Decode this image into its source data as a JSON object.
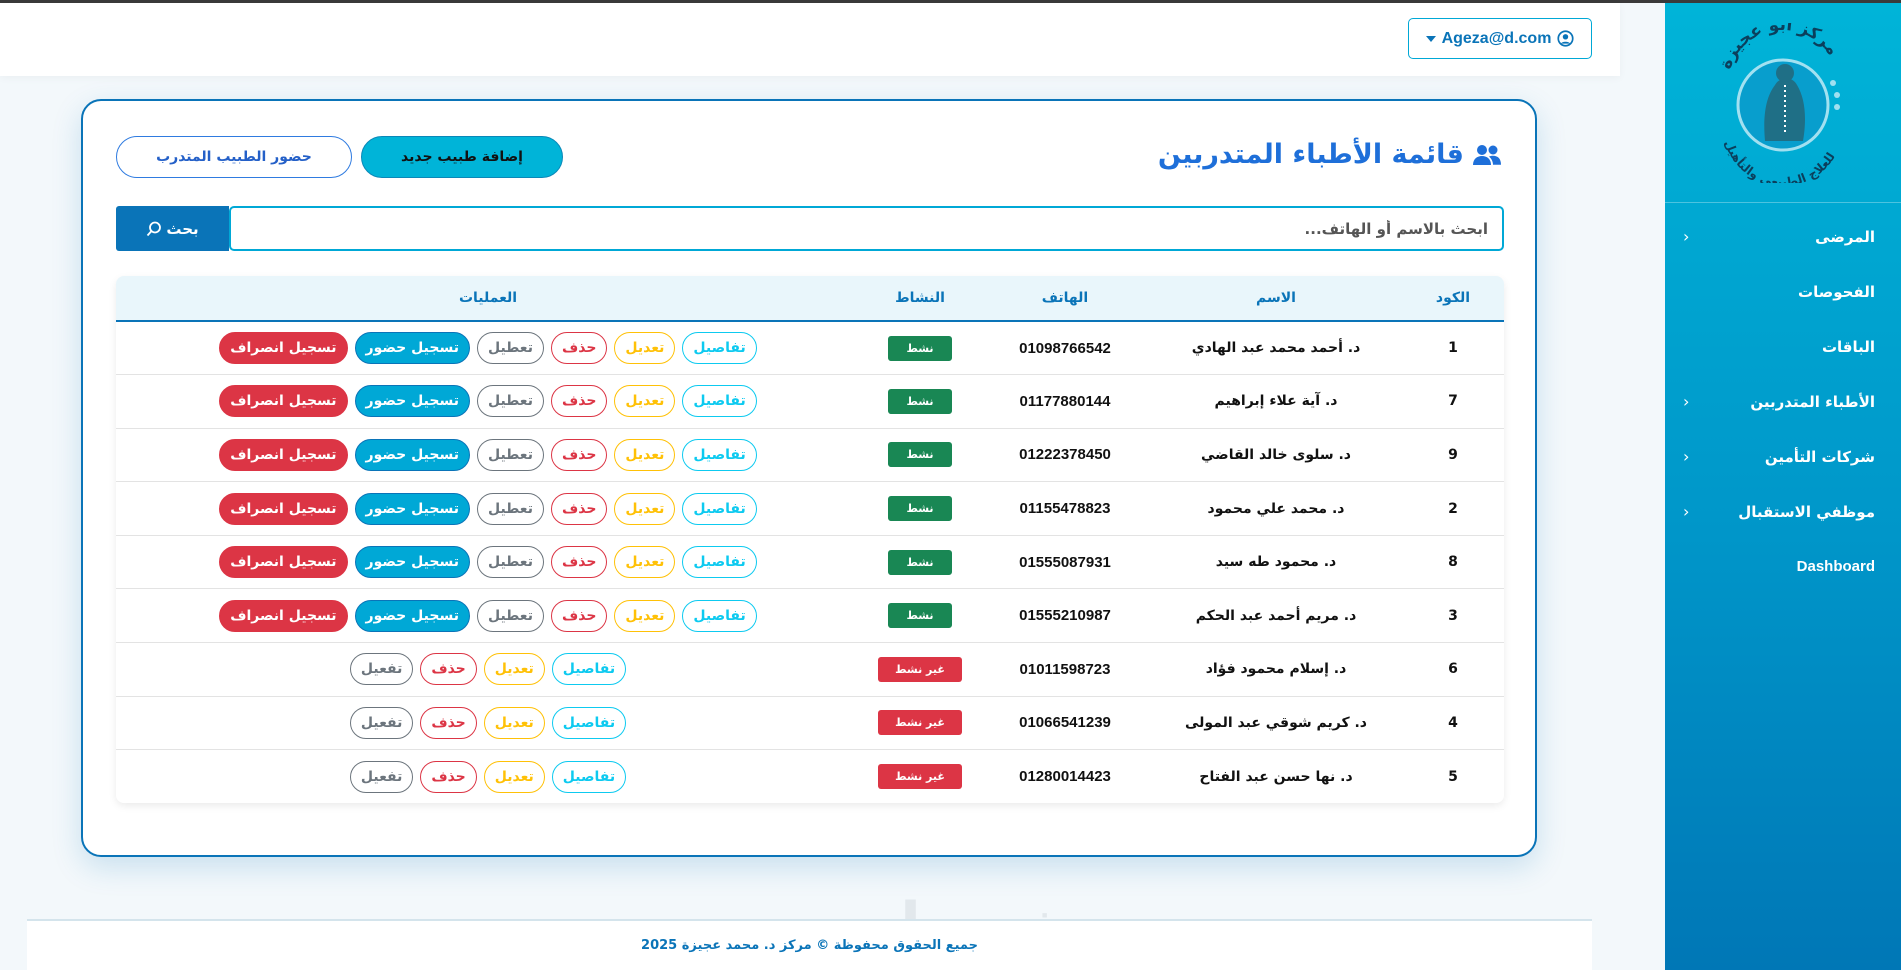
{
  "header": {
    "user_email": "Ageza@d.com"
  },
  "sidebar": {
    "logo_text_top": "مركز أبو عجيزة",
    "logo_text_bottom": "للعلاج الطبيعي والتأهيل",
    "items": [
      {
        "label": "المرضى",
        "has_children": true
      },
      {
        "label": "الفحوصات",
        "has_children": false
      },
      {
        "label": "الباقات",
        "has_children": false
      },
      {
        "label": "الأطباء المتدربين",
        "has_children": true
      },
      {
        "label": "شركات التأمين",
        "has_children": true
      },
      {
        "label": "موظفي الاستقبال",
        "has_children": true
      },
      {
        "label": "Dashboard",
        "has_children": false
      }
    ]
  },
  "main": {
    "title": "قائمة الأطباء المتدربين",
    "add_button": "إضافة طبيب جديد",
    "attendance_button": "حضور الطبيب المتدرب",
    "search": {
      "placeholder": "ابحث بالاسم أو الهاتف...",
      "value": "",
      "button": "بحث"
    },
    "table": {
      "columns": [
        "الكود",
        "الاسم",
        "الهاتف",
        "النشاط",
        "العمليات"
      ],
      "rows": [
        {
          "code": "1",
          "name": "د. أحمد محمد عبد الهادي",
          "phone": "01098766542",
          "status": "نشط",
          "active": true
        },
        {
          "code": "7",
          "name": "د. آية علاء إبراهيم",
          "phone": "01177880144",
          "status": "نشط",
          "active": true
        },
        {
          "code": "9",
          "name": "د. سلوى خالد القاضي",
          "phone": "01222378450",
          "status": "نشط",
          "active": true
        },
        {
          "code": "2",
          "name": "د. محمد علي محمود",
          "phone": "01155478823",
          "status": "نشط",
          "active": true
        },
        {
          "code": "8",
          "name": "د. محمود طه سيد",
          "phone": "01555087931",
          "status": "نشط",
          "active": true
        },
        {
          "code": "3",
          "name": "د. مريم أحمد عبد الحكم",
          "phone": "01555210987",
          "status": "نشط",
          "active": true
        },
        {
          "code": "6",
          "name": "د. إسلام محمود فؤاد",
          "phone": "01011598723",
          "status": "غير نشط",
          "active": false
        },
        {
          "code": "4",
          "name": "د. كريم شوقي عبد المولى",
          "phone": "01066541239",
          "status": "غير نشط",
          "active": false
        },
        {
          "code": "5",
          "name": "د. نها حسن عبد الفتاح",
          "phone": "01280014423",
          "status": "غير نشط",
          "active": false
        }
      ],
      "actions_active": [
        "تفاصيل",
        "تعديل",
        "حذف",
        "تعطيل",
        "تسجيل حضور",
        "تسجيل انصراف"
      ],
      "actions_inactive": [
        "تفاصيل",
        "تعديل",
        "حذف",
        "تفعيل"
      ]
    }
  },
  "footer": {
    "text": "جميع الحقوق محفوظة © مركز د. محمد عجيزة 2025"
  },
  "watermark": "خمسات",
  "colors": {
    "primary": "#0a74b8",
    "accent": "#00b4d8",
    "active": "#198754",
    "inactive": "#dc3545"
  }
}
